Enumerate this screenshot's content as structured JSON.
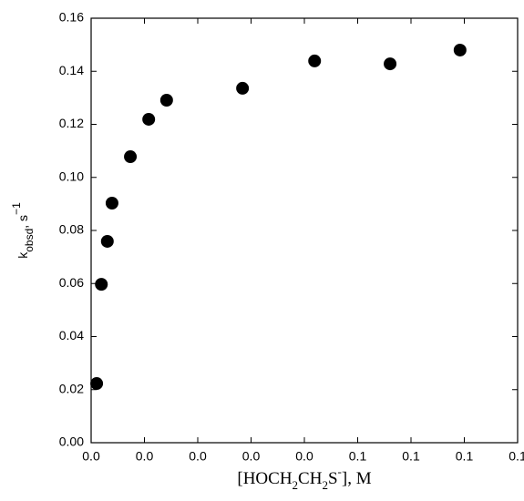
{
  "chart_data": {
    "type": "scatter",
    "x_label": {
      "a": "[HOCH",
      "b": "2",
      "c": "CH",
      "d": "2",
      "e": "S",
      "f": "-",
      "g": "], M"
    },
    "y_label": {
      "main": "k",
      "sub": "obsd",
      "rest": ", s",
      "sup": "−1"
    },
    "x": [
      0.0013,
      0.0024,
      0.0038,
      0.0049,
      0.0092,
      0.0135,
      0.0177,
      0.0355,
      0.0524,
      0.0701,
      0.0865
    ],
    "values": [
      0.0223,
      0.0597,
      0.0759,
      0.0903,
      0.1078,
      0.1219,
      0.1291,
      0.1336,
      0.1439,
      0.1428,
      0.148
    ],
    "color": "#000000",
    "xlim": [
      0,
      0.1
    ],
    "xticks": [
      {
        "value": 0,
        "label": "0.0"
      },
      {
        "value": 0.0125,
        "label": "0.0"
      },
      {
        "value": 0.025,
        "label": "0.0"
      },
      {
        "value": 0.0375,
        "label": "0.0"
      },
      {
        "value": 0.05,
        "label": "0.0"
      },
      {
        "value": 0.0625,
        "label": "0.1"
      },
      {
        "value": 0.075,
        "label": "0.1"
      },
      {
        "value": 0.0875,
        "label": "0.1"
      },
      {
        "value": 0.1,
        "label": "0.1"
      }
    ],
    "ylim": [
      0,
      0.16
    ],
    "yticks": [
      {
        "value": 0,
        "label": "0.00"
      },
      0.02,
      0.04,
      0.06,
      0.08,
      {
        "value": 0.1,
        "label": "0.10"
      },
      0.12,
      0.14,
      0.16
    ]
  }
}
